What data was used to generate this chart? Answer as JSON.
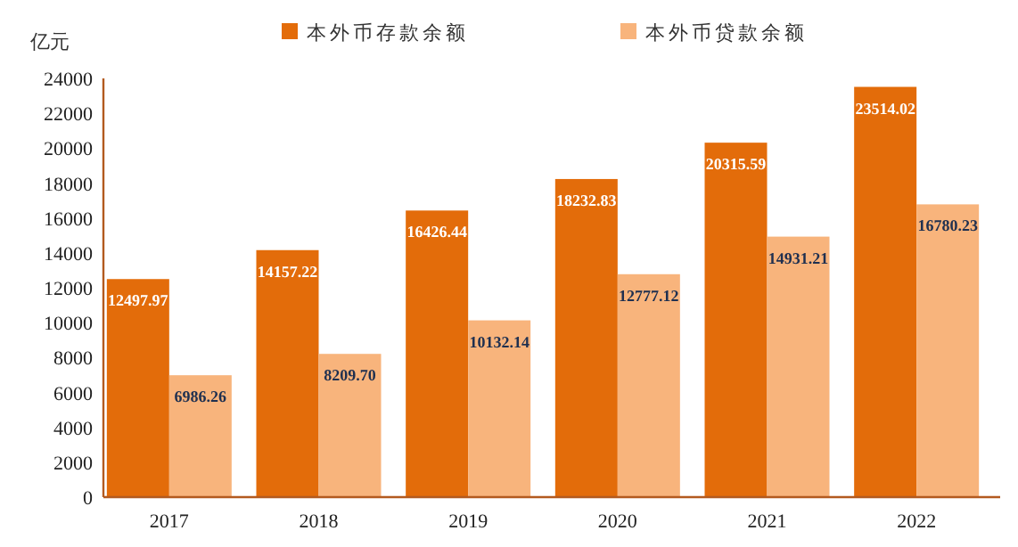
{
  "chart_data": {
    "type": "bar",
    "ylabel": "亿元",
    "categories": [
      "2017",
      "2018",
      "2019",
      "2020",
      "2021",
      "2022"
    ],
    "series": [
      {
        "name": "本外币存款余额",
        "color": "#e36c0a",
        "values": [
          12497.97,
          14157.22,
          16426.44,
          18232.83,
          20315.59,
          23514.02
        ],
        "value_labels": [
          "12497.97",
          "14157.22",
          "16426.44",
          "18232.83",
          "20315.59",
          "23514.02"
        ]
      },
      {
        "name": "本外币贷款余额",
        "color": "#f8b47c",
        "values": [
          6986.26,
          8209.7,
          10132.14,
          12777.12,
          14931.21,
          16780.23
        ],
        "value_labels": [
          "6986.26",
          "8209.70",
          "10132.14",
          "12777.12",
          "14931.21",
          "16780.23"
        ]
      }
    ],
    "ylim": [
      0,
      24000
    ],
    "yticks": [
      0,
      2000,
      4000,
      6000,
      8000,
      10000,
      12000,
      14000,
      16000,
      18000,
      20000,
      22000,
      24000
    ],
    "legend": "top",
    "grid": false
  }
}
